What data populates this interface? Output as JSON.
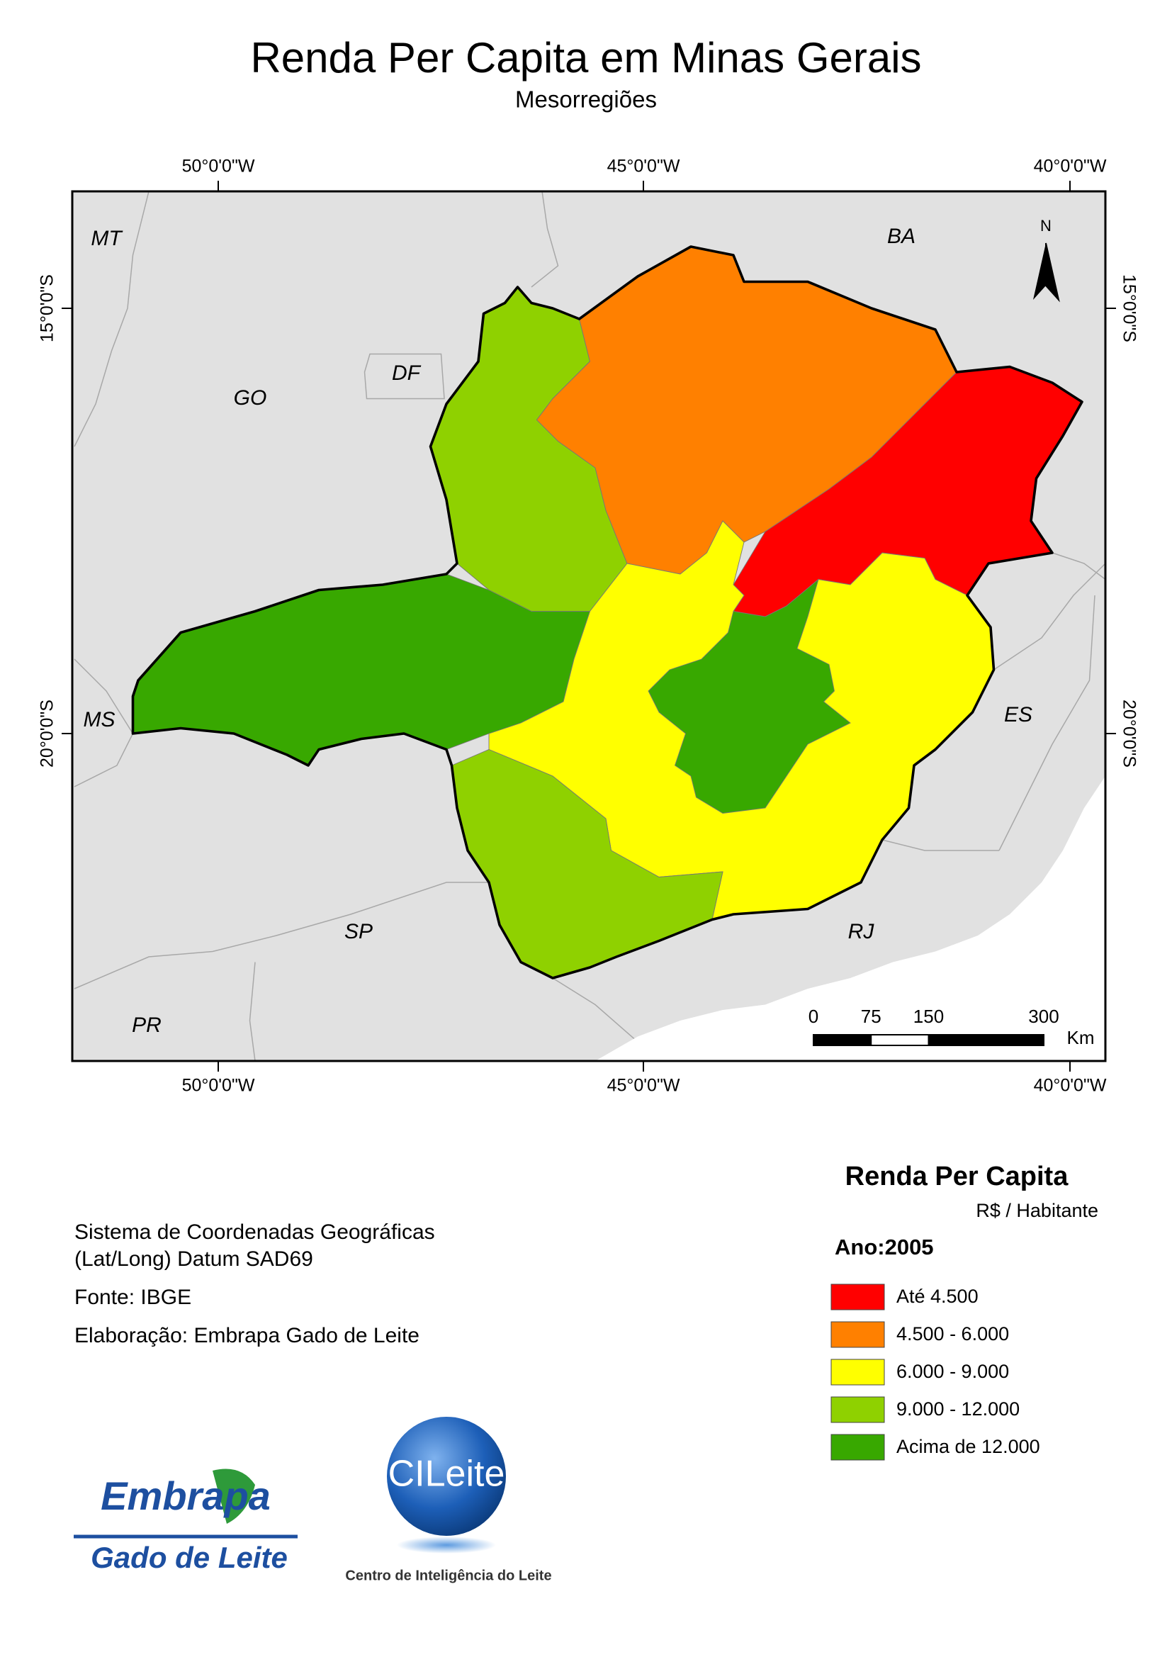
{
  "title": "Renda Per Capita em Minas Gerais",
  "subtitle": "Mesorregiões",
  "map": {
    "longitude_labels": [
      "50°0'0\"W",
      "45°0'0\"W",
      "40°0'0\"W"
    ],
    "latitude_labels": [
      "15°0'0\"S",
      "20°0'0\"S"
    ],
    "state_labels": [
      "MT",
      "BA",
      "GO",
      "DF",
      "MS",
      "ES",
      "SP",
      "RJ",
      "PR"
    ],
    "north": "N",
    "scale_bar": {
      "ticks": [
        0,
        75,
        150,
        300
      ],
      "unit": "Km"
    }
  },
  "legend": {
    "title": "Renda Per Capita",
    "unit": "R$ / Habitante",
    "year": "Ano:2005",
    "items": [
      {
        "label": "Até 4.500",
        "color": "#ff0000"
      },
      {
        "label": "4.500 - 6.000",
        "color": "#ff8000"
      },
      {
        "label": "6.000 - 9.000",
        "color": "#ffff00"
      },
      {
        "label": "9.000 - 12.000",
        "color": "#8fd100"
      },
      {
        "label": "Acima de 12.000",
        "color": "#38a800"
      }
    ]
  },
  "notes": [
    "Sistema de Coordenadas Geográficas",
    "(Lat/Long) Datum SAD69",
    "Fonte: IBGE",
    "Elaboração: Embrapa Gado de Leite"
  ],
  "logos": {
    "embrapa": "Embrapa",
    "embrapa_unit": "Gado de Leite",
    "cileite": "CILeite",
    "cileite_caption": "Centro de Inteligência do Leite"
  }
}
